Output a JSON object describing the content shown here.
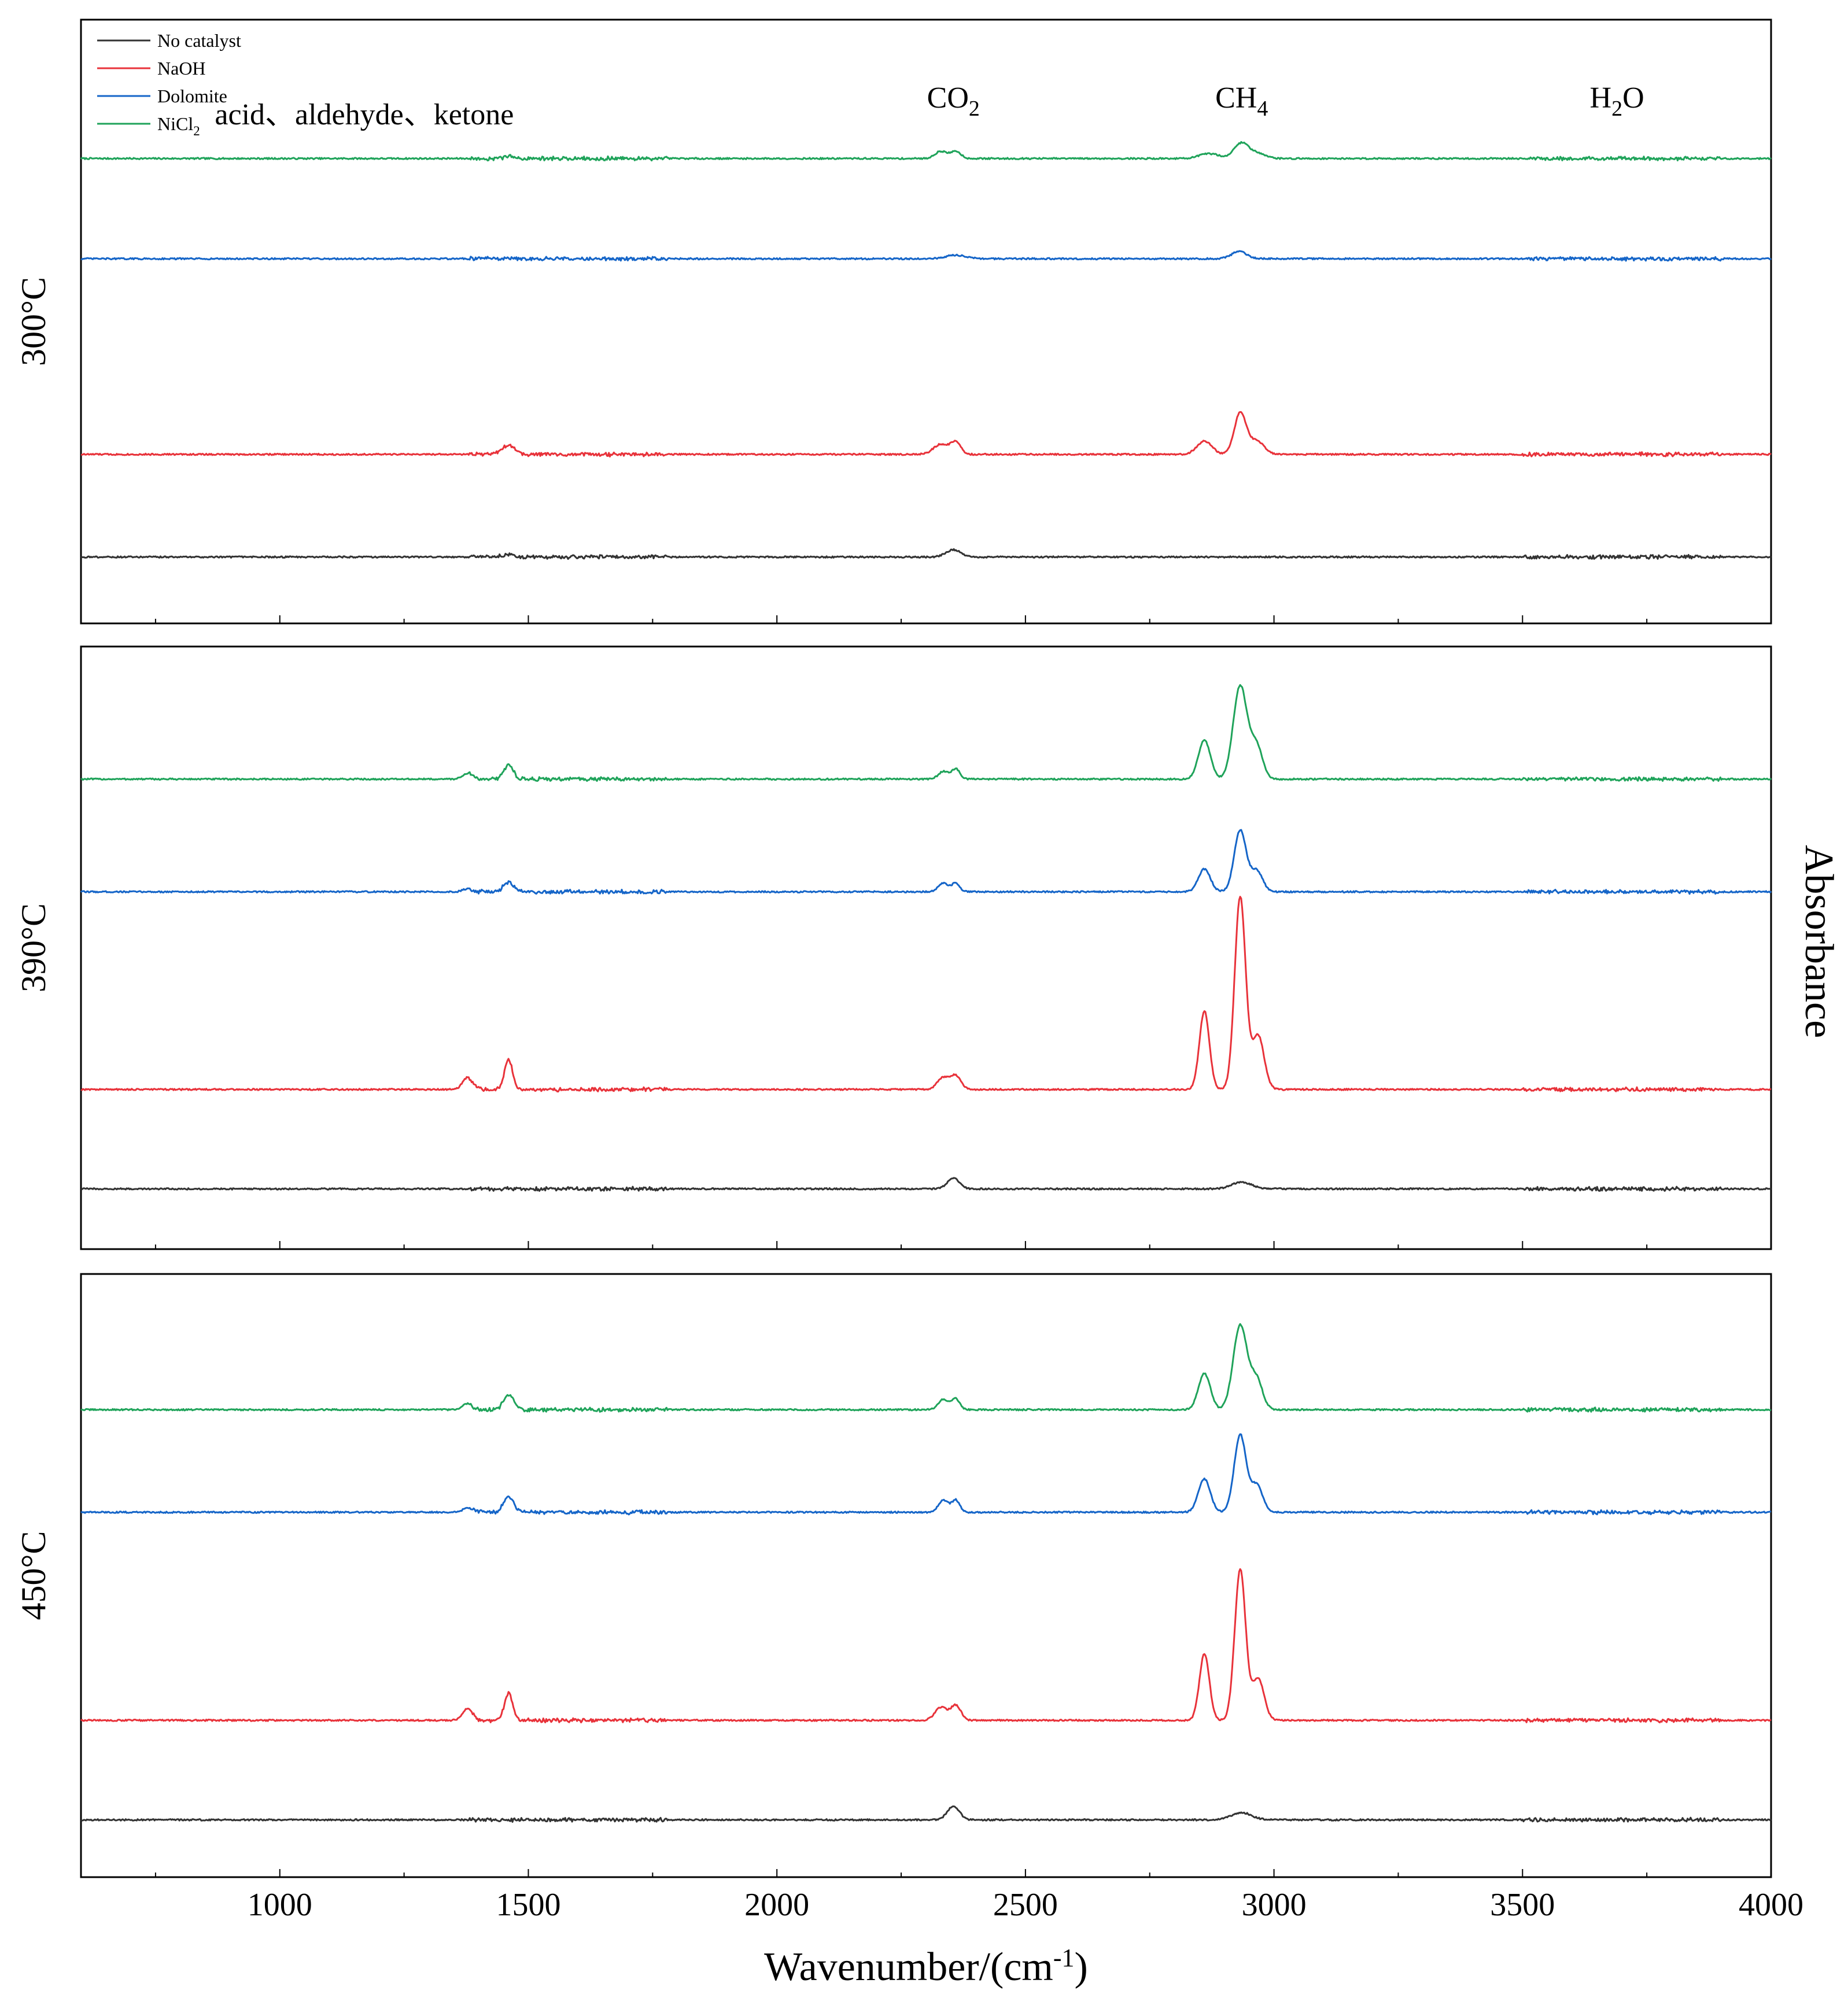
{
  "chart_data": {
    "type": "line",
    "xlabel": "Wavenumber/(cm",
    "xlabel_sup": "-1",
    "xlabel_close": ")",
    "ylabel": "Absorbance",
    "xlim": [
      600,
      4000
    ],
    "xticks": [
      1000,
      1500,
      2000,
      2500,
      3000,
      3500,
      4000
    ],
    "xtick_labels": [
      "1000",
      "1500",
      "2000",
      "2500",
      "3000",
      "3500",
      "4000"
    ],
    "y_ticks_labeled": false,
    "grid": false,
    "legend_position": "top-left",
    "legend": [
      {
        "key": "none",
        "label": "No catalyst",
        "sub": "",
        "color": "#333333"
      },
      {
        "key": "naoh",
        "label": "NaOH",
        "sub": "",
        "color": "#e8323a"
      },
      {
        "key": "dolo",
        "label": "Dolomite",
        "sub": "",
        "color": "#1565c8"
      },
      {
        "key": "nicl",
        "label": "NiCl",
        "sub": "2",
        "color": "#1fa35a"
      }
    ],
    "annotations": [
      {
        "text": "acid、aldehyde、ketone",
        "sub": "",
        "tail": "",
        "x": 1170
      },
      {
        "text": "CO",
        "sub": "2",
        "tail": "",
        "x": 2355
      },
      {
        "text": "CH",
        "sub": "4",
        "tail": "",
        "x": 2935
      },
      {
        "text": "H",
        "sub": "2",
        "tail": "O",
        "x": 3690
      }
    ],
    "panels": [
      {
        "label": "300°C",
        "ylim": [
          0,
          1
        ],
        "series": [
          {
            "key": "nicl",
            "baseline": 0.77,
            "features": [
              [
                1460,
                10,
                0.003
              ],
              [
                2330,
                12,
                0.012
              ],
              [
                2360,
                10,
                0.012
              ],
              [
                2870,
                20,
                0.008
              ],
              [
                2935,
                15,
                0.026
              ],
              [
                2970,
                15,
                0.008
              ]
            ]
          },
          {
            "key": "dolo",
            "baseline": 0.604,
            "features": [
              [
                2930,
                15,
                0.012
              ],
              [
                2360,
                20,
                0.006
              ]
            ]
          },
          {
            "key": "naoh",
            "baseline": 0.28,
            "features": [
              [
                1460,
                12,
                0.015
              ],
              [
                2330,
                15,
                0.017
              ],
              [
                2360,
                10,
                0.02
              ],
              [
                2860,
                15,
                0.022
              ],
              [
                2932,
                12,
                0.068
              ],
              [
                2965,
                15,
                0.022
              ]
            ]
          },
          {
            "key": "none",
            "baseline": 0.11,
            "features": [
              [
                2355,
                15,
                0.012
              ],
              [
                1460,
                12,
                0.004
              ]
            ]
          }
        ]
      },
      {
        "label": "390°C",
        "ylim": [
          0,
          1
        ],
        "series": [
          {
            "key": "nicl",
            "baseline": 0.78,
            "features": [
              [
                1378,
                10,
                0.01
              ],
              [
                1460,
                10,
                0.023
              ],
              [
                2335,
                10,
                0.013
              ],
              [
                2360,
                8,
                0.017
              ],
              [
                2860,
                12,
                0.065
              ],
              [
                2932,
                14,
                0.155
              ],
              [
                2965,
                12,
                0.055
              ]
            ]
          },
          {
            "key": "dolo",
            "baseline": 0.593,
            "features": [
              [
                1378,
                10,
                0.005
              ],
              [
                1460,
                10,
                0.015
              ],
              [
                2335,
                10,
                0.014
              ],
              [
                2360,
                8,
                0.014
              ],
              [
                2860,
                12,
                0.038
              ],
              [
                2932,
                12,
                0.102
              ],
              [
                2965,
                12,
                0.035
              ]
            ]
          },
          {
            "key": "naoh",
            "baseline": 0.265,
            "features": [
              [
                1378,
                10,
                0.02
              ],
              [
                1460,
                8,
                0.05
              ],
              [
                2335,
                12,
                0.02
              ],
              [
                2360,
                10,
                0.022
              ],
              [
                2860,
                10,
                0.13
              ],
              [
                2932,
                11,
                0.32
              ],
              [
                2968,
                12,
                0.09
              ]
            ]
          },
          {
            "key": "none",
            "baseline": 0.1,
            "features": [
              [
                2355,
                12,
                0.018
              ],
              [
                2935,
                20,
                0.011
              ]
            ]
          }
        ]
      },
      {
        "label": "450°C",
        "ylim": [
          0,
          1
        ],
        "series": [
          {
            "key": "nicl",
            "baseline": 0.775,
            "features": [
              [
                1378,
                10,
                0.01
              ],
              [
                1460,
                10,
                0.025
              ],
              [
                2335,
                10,
                0.017
              ],
              [
                2360,
                8,
                0.018
              ],
              [
                2860,
                12,
                0.06
              ],
              [
                2932,
                14,
                0.14
              ],
              [
                2965,
                12,
                0.05
              ]
            ]
          },
          {
            "key": "dolo",
            "baseline": 0.605,
            "features": [
              [
                1378,
                10,
                0.007
              ],
              [
                1460,
                10,
                0.025
              ],
              [
                2335,
                10,
                0.02
              ],
              [
                2360,
                8,
                0.02
              ],
              [
                2860,
                12,
                0.055
              ],
              [
                2932,
                12,
                0.128
              ],
              [
                2965,
                12,
                0.045
              ]
            ]
          },
          {
            "key": "naoh",
            "baseline": 0.26,
            "features": [
              [
                1378,
                10,
                0.02
              ],
              [
                1460,
                8,
                0.045
              ],
              [
                2330,
                12,
                0.022
              ],
              [
                2360,
                10,
                0.025
              ],
              [
                2860,
                10,
                0.11
              ],
              [
                2932,
                11,
                0.25
              ],
              [
                2968,
                12,
                0.07
              ]
            ]
          },
          {
            "key": "none",
            "baseline": 0.095,
            "features": [
              [
                2355,
                12,
                0.023
              ],
              [
                2935,
                20,
                0.012
              ]
            ]
          }
        ]
      }
    ]
  }
}
